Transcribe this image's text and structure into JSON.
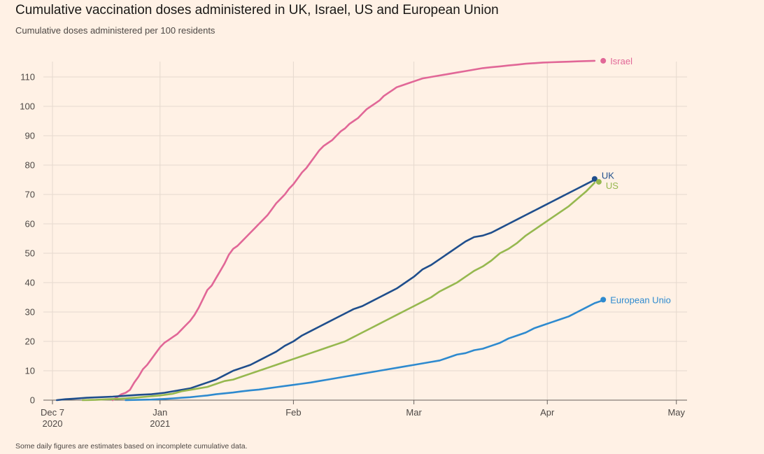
{
  "chart_data": {
    "type": "line",
    "title": "Cumulative vaccination doses administered in UK, Israel, US and European Union",
    "subtitle": "Cumulative doses administered per 100 residents",
    "footnote": "Some daily figures are estimates based on incomplete cumulative data.",
    "xlabel": "",
    "ylabel": "",
    "x_unit": "days since Dec 7 2020",
    "xlim": [
      -1,
      150
    ],
    "ylim": [
      0,
      115
    ],
    "grid": true,
    "y_ticks": [
      0,
      10,
      20,
      30,
      40,
      50,
      60,
      70,
      80,
      90,
      100,
      110
    ],
    "x_ticks": [
      {
        "day": 0,
        "line1": "Dec 7",
        "line2": "2020"
      },
      {
        "day": 25,
        "line1": "Jan",
        "line2": "2021"
      },
      {
        "day": 56,
        "line1": "Feb",
        "line2": ""
      },
      {
        "day": 84,
        "line1": "Mar",
        "line2": ""
      },
      {
        "day": 115,
        "line1": "Apr",
        "line2": ""
      },
      {
        "day": 145,
        "line1": "May",
        "line2": ""
      }
    ],
    "series": [
      {
        "name": "Israel",
        "label": "Israel",
        "color": "#e16797",
        "points": [
          [
            14,
            0
          ],
          [
            15,
            1
          ],
          [
            16,
            2
          ],
          [
            17,
            2.5
          ],
          [
            18,
            3.5
          ],
          [
            19,
            6
          ],
          [
            20,
            8
          ],
          [
            21,
            10.5
          ],
          [
            22,
            12
          ],
          [
            23,
            14
          ],
          [
            24,
            16
          ],
          [
            25,
            18
          ],
          [
            26,
            19.5
          ],
          [
            27,
            20.5
          ],
          [
            28,
            21.5
          ],
          [
            29,
            22.5
          ],
          [
            30,
            24
          ],
          [
            31,
            25.5
          ],
          [
            32,
            27
          ],
          [
            33,
            29
          ],
          [
            34,
            31.5
          ],
          [
            35,
            34.5
          ],
          [
            36,
            37.5
          ],
          [
            37,
            39
          ],
          [
            38,
            41.5
          ],
          [
            39,
            44
          ],
          [
            40,
            46.5
          ],
          [
            41,
            49.5
          ],
          [
            42,
            51.5
          ],
          [
            43,
            52.5
          ],
          [
            44,
            54
          ],
          [
            45,
            55.5
          ],
          [
            46,
            57
          ],
          [
            47,
            58.5
          ],
          [
            48,
            60
          ],
          [
            49,
            61.5
          ],
          [
            50,
            63
          ],
          [
            51,
            65
          ],
          [
            52,
            67
          ],
          [
            53,
            68.5
          ],
          [
            54,
            70
          ],
          [
            55,
            72
          ],
          [
            56,
            73.5
          ],
          [
            57,
            75.5
          ],
          [
            58,
            77.5
          ],
          [
            59,
            79
          ],
          [
            60,
            81
          ],
          [
            61,
            83
          ],
          [
            62,
            85
          ],
          [
            63,
            86.5
          ],
          [
            64,
            87.5
          ],
          [
            65,
            88.5
          ],
          [
            66,
            90
          ],
          [
            67,
            91.5
          ],
          [
            68,
            92.5
          ],
          [
            69,
            94
          ],
          [
            70,
            95
          ],
          [
            71,
            96
          ],
          [
            72,
            97.5
          ],
          [
            73,
            99
          ],
          [
            74,
            100
          ],
          [
            75,
            101
          ],
          [
            76,
            102
          ],
          [
            77,
            103.5
          ],
          [
            78,
            104.5
          ],
          [
            79,
            105.5
          ],
          [
            80,
            106.5
          ],
          [
            81,
            107
          ],
          [
            82,
            107.5
          ],
          [
            83,
            108
          ],
          [
            84,
            108.5
          ],
          [
            86,
            109.5
          ],
          [
            88,
            110
          ],
          [
            90,
            110.5
          ],
          [
            92,
            111
          ],
          [
            94,
            111.5
          ],
          [
            96,
            112
          ],
          [
            98,
            112.5
          ],
          [
            100,
            113
          ],
          [
            102,
            113.3
          ],
          [
            104,
            113.6
          ],
          [
            106,
            113.9
          ],
          [
            108,
            114.2
          ],
          [
            110,
            114.5
          ],
          [
            112,
            114.7
          ],
          [
            114,
            114.9
          ],
          [
            116,
            115
          ],
          [
            118,
            115.1
          ],
          [
            120,
            115.2
          ],
          [
            122,
            115.3
          ],
          [
            124,
            115.4
          ],
          [
            126,
            115.5
          ]
        ],
        "end_value": 115.5
      },
      {
        "name": "UK",
        "label": "UK",
        "color": "#1f4e8c",
        "points": [
          [
            1,
            0
          ],
          [
            3,
            0.3
          ],
          [
            5,
            0.5
          ],
          [
            8,
            0.8
          ],
          [
            11,
            1
          ],
          [
            14,
            1.2
          ],
          [
            17,
            1.5
          ],
          [
            20,
            1.8
          ],
          [
            23,
            2
          ],
          [
            26,
            2.5
          ],
          [
            28,
            3
          ],
          [
            30,
            3.5
          ],
          [
            32,
            4
          ],
          [
            34,
            5
          ],
          [
            36,
            6
          ],
          [
            38,
            7
          ],
          [
            40,
            8.5
          ],
          [
            42,
            10
          ],
          [
            44,
            11
          ],
          [
            46,
            12
          ],
          [
            48,
            13.5
          ],
          [
            50,
            15
          ],
          [
            52,
            16.5
          ],
          [
            54,
            18.5
          ],
          [
            56,
            20
          ],
          [
            58,
            22
          ],
          [
            60,
            23.5
          ],
          [
            62,
            25
          ],
          [
            64,
            26.5
          ],
          [
            66,
            28
          ],
          [
            68,
            29.5
          ],
          [
            70,
            31
          ],
          [
            72,
            32
          ],
          [
            74,
            33.5
          ],
          [
            76,
            35
          ],
          [
            78,
            36.5
          ],
          [
            80,
            38
          ],
          [
            82,
            40
          ],
          [
            84,
            42
          ],
          [
            86,
            44.5
          ],
          [
            88,
            46
          ],
          [
            90,
            48
          ],
          [
            92,
            50
          ],
          [
            94,
            52
          ],
          [
            96,
            54
          ],
          [
            98,
            55.5
          ],
          [
            100,
            56
          ],
          [
            102,
            57
          ],
          [
            104,
            58.5
          ],
          [
            106,
            60
          ],
          [
            108,
            61.5
          ],
          [
            110,
            63
          ],
          [
            112,
            64.5
          ],
          [
            114,
            66
          ],
          [
            116,
            67.5
          ],
          [
            118,
            69
          ],
          [
            120,
            70.5
          ],
          [
            122,
            72
          ],
          [
            124,
            73.5
          ],
          [
            126,
            75
          ]
        ],
        "end_value": 75.3
      },
      {
        "name": "US",
        "label": "US",
        "color": "#96b84f",
        "points": [
          [
            7,
            0
          ],
          [
            10,
            0.1
          ],
          [
            13,
            0.3
          ],
          [
            16,
            0.5
          ],
          [
            19,
            0.8
          ],
          [
            22,
            1.2
          ],
          [
            25,
            1.6
          ],
          [
            28,
            2.2
          ],
          [
            30,
            3
          ],
          [
            32,
            3.5
          ],
          [
            34,
            4
          ],
          [
            36,
            4.5
          ],
          [
            38,
            5.5
          ],
          [
            40,
            6.5
          ],
          [
            42,
            7
          ],
          [
            44,
            8
          ],
          [
            46,
            9
          ],
          [
            48,
            10
          ],
          [
            50,
            11
          ],
          [
            52,
            12
          ],
          [
            54,
            13
          ],
          [
            56,
            14
          ],
          [
            58,
            15
          ],
          [
            60,
            16
          ],
          [
            62,
            17
          ],
          [
            64,
            18
          ],
          [
            66,
            19
          ],
          [
            68,
            20
          ],
          [
            70,
            21.5
          ],
          [
            72,
            23
          ],
          [
            74,
            24.5
          ],
          [
            76,
            26
          ],
          [
            78,
            27.5
          ],
          [
            80,
            29
          ],
          [
            82,
            30.5
          ],
          [
            84,
            32
          ],
          [
            86,
            33.5
          ],
          [
            88,
            35
          ],
          [
            90,
            37
          ],
          [
            92,
            38.5
          ],
          [
            94,
            40
          ],
          [
            96,
            42
          ],
          [
            98,
            44
          ],
          [
            100,
            45.5
          ],
          [
            102,
            47.5
          ],
          [
            104,
            50
          ],
          [
            106,
            51.5
          ],
          [
            108,
            53.5
          ],
          [
            110,
            56
          ],
          [
            112,
            58
          ],
          [
            114,
            60
          ],
          [
            116,
            62
          ],
          [
            118,
            64
          ],
          [
            120,
            66
          ],
          [
            122,
            68.5
          ],
          [
            124,
            71
          ],
          [
            126,
            74
          ]
        ],
        "end_value": 74.3
      },
      {
        "name": "European Union",
        "label": "European Unio",
        "color": "#2e8acf",
        "points": [
          [
            17,
            0
          ],
          [
            20,
            0.1
          ],
          [
            23,
            0.2
          ],
          [
            26,
            0.4
          ],
          [
            28,
            0.6
          ],
          [
            30,
            0.8
          ],
          [
            32,
            1
          ],
          [
            34,
            1.3
          ],
          [
            36,
            1.6
          ],
          [
            38,
            2
          ],
          [
            40,
            2.3
          ],
          [
            42,
            2.6
          ],
          [
            44,
            3
          ],
          [
            46,
            3.3
          ],
          [
            48,
            3.6
          ],
          [
            50,
            4
          ],
          [
            52,
            4.4
          ],
          [
            54,
            4.8
          ],
          [
            56,
            5.2
          ],
          [
            58,
            5.6
          ],
          [
            60,
            6
          ],
          [
            62,
            6.5
          ],
          [
            64,
            7
          ],
          [
            66,
            7.5
          ],
          [
            68,
            8
          ],
          [
            70,
            8.5
          ],
          [
            72,
            9
          ],
          [
            74,
            9.5
          ],
          [
            76,
            10
          ],
          [
            78,
            10.5
          ],
          [
            80,
            11
          ],
          [
            82,
            11.5
          ],
          [
            84,
            12
          ],
          [
            86,
            12.5
          ],
          [
            88,
            13
          ],
          [
            90,
            13.5
          ],
          [
            92,
            14.5
          ],
          [
            94,
            15.5
          ],
          [
            96,
            16
          ],
          [
            98,
            17
          ],
          [
            100,
            17.5
          ],
          [
            102,
            18.5
          ],
          [
            104,
            19.5
          ],
          [
            106,
            21
          ],
          [
            108,
            22
          ],
          [
            110,
            23
          ],
          [
            112,
            24.5
          ],
          [
            114,
            25.5
          ],
          [
            116,
            26.5
          ],
          [
            118,
            27.5
          ],
          [
            120,
            28.5
          ],
          [
            122,
            30
          ],
          [
            124,
            31.5
          ],
          [
            126,
            33
          ],
          [
            128,
            34
          ]
        ],
        "end_value": 34.2
      }
    ]
  }
}
